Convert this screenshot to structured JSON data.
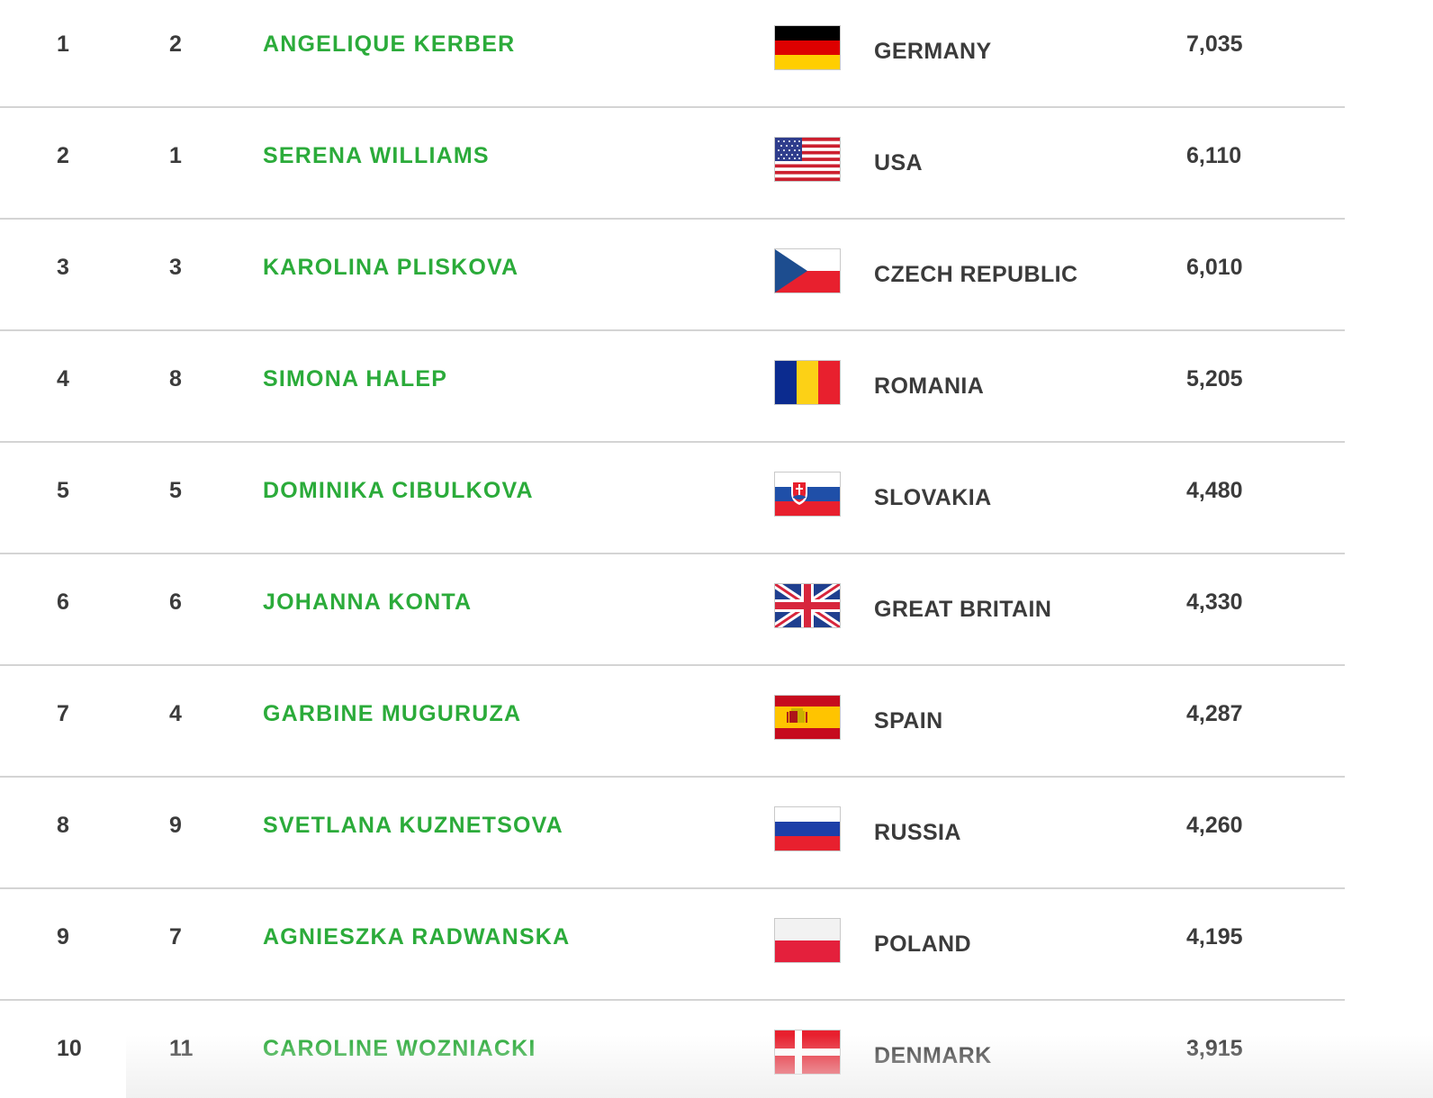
{
  "rankings": [
    {
      "rank": "1",
      "previous": "2",
      "player": "ANGELIQUE KERBER",
      "country": "GERMANY",
      "points": "7,035",
      "flag": "germany-flag-icon"
    },
    {
      "rank": "2",
      "previous": "1",
      "player": "SERENA WILLIAMS",
      "country": "USA",
      "points": "6,110",
      "flag": "usa-flag-icon"
    },
    {
      "rank": "3",
      "previous": "3",
      "player": "KAROLINA PLISKOVA",
      "country": "CZECH REPUBLIC",
      "points": "6,010",
      "flag": "czech-flag-icon"
    },
    {
      "rank": "4",
      "previous": "8",
      "player": "SIMONA HALEP",
      "country": "ROMANIA",
      "points": "5,205",
      "flag": "romania-flag-icon"
    },
    {
      "rank": "5",
      "previous": "5",
      "player": "DOMINIKA CIBULKOVA",
      "country": "SLOVAKIA",
      "points": "4,480",
      "flag": "slovakia-flag-icon"
    },
    {
      "rank": "6",
      "previous": "6",
      "player": "JOHANNA KONTA",
      "country": "GREAT BRITAIN",
      "points": "4,330",
      "flag": "great-britain-flag-icon"
    },
    {
      "rank": "7",
      "previous": "4",
      "player": "GARBINE MUGURUZA",
      "country": "SPAIN",
      "points": "4,287",
      "flag": "spain-flag-icon"
    },
    {
      "rank": "8",
      "previous": "9",
      "player": "SVETLANA KUZNETSOVA",
      "country": "RUSSIA",
      "points": "4,260",
      "flag": "russia-flag-icon"
    },
    {
      "rank": "9",
      "previous": "7",
      "player": "AGNIESZKA RADWANSKA",
      "country": "POLAND",
      "points": "4,195",
      "flag": "poland-flag-icon"
    },
    {
      "rank": "10",
      "previous": "11",
      "player": "CAROLINE WOZNIACKI",
      "country": "DENMARK",
      "points": "3,915",
      "flag": "denmark-flag-icon"
    }
  ],
  "colors": {
    "player_link": "#2bab3a",
    "text": "#3b3b3b",
    "divider": "#d4d4d4"
  }
}
